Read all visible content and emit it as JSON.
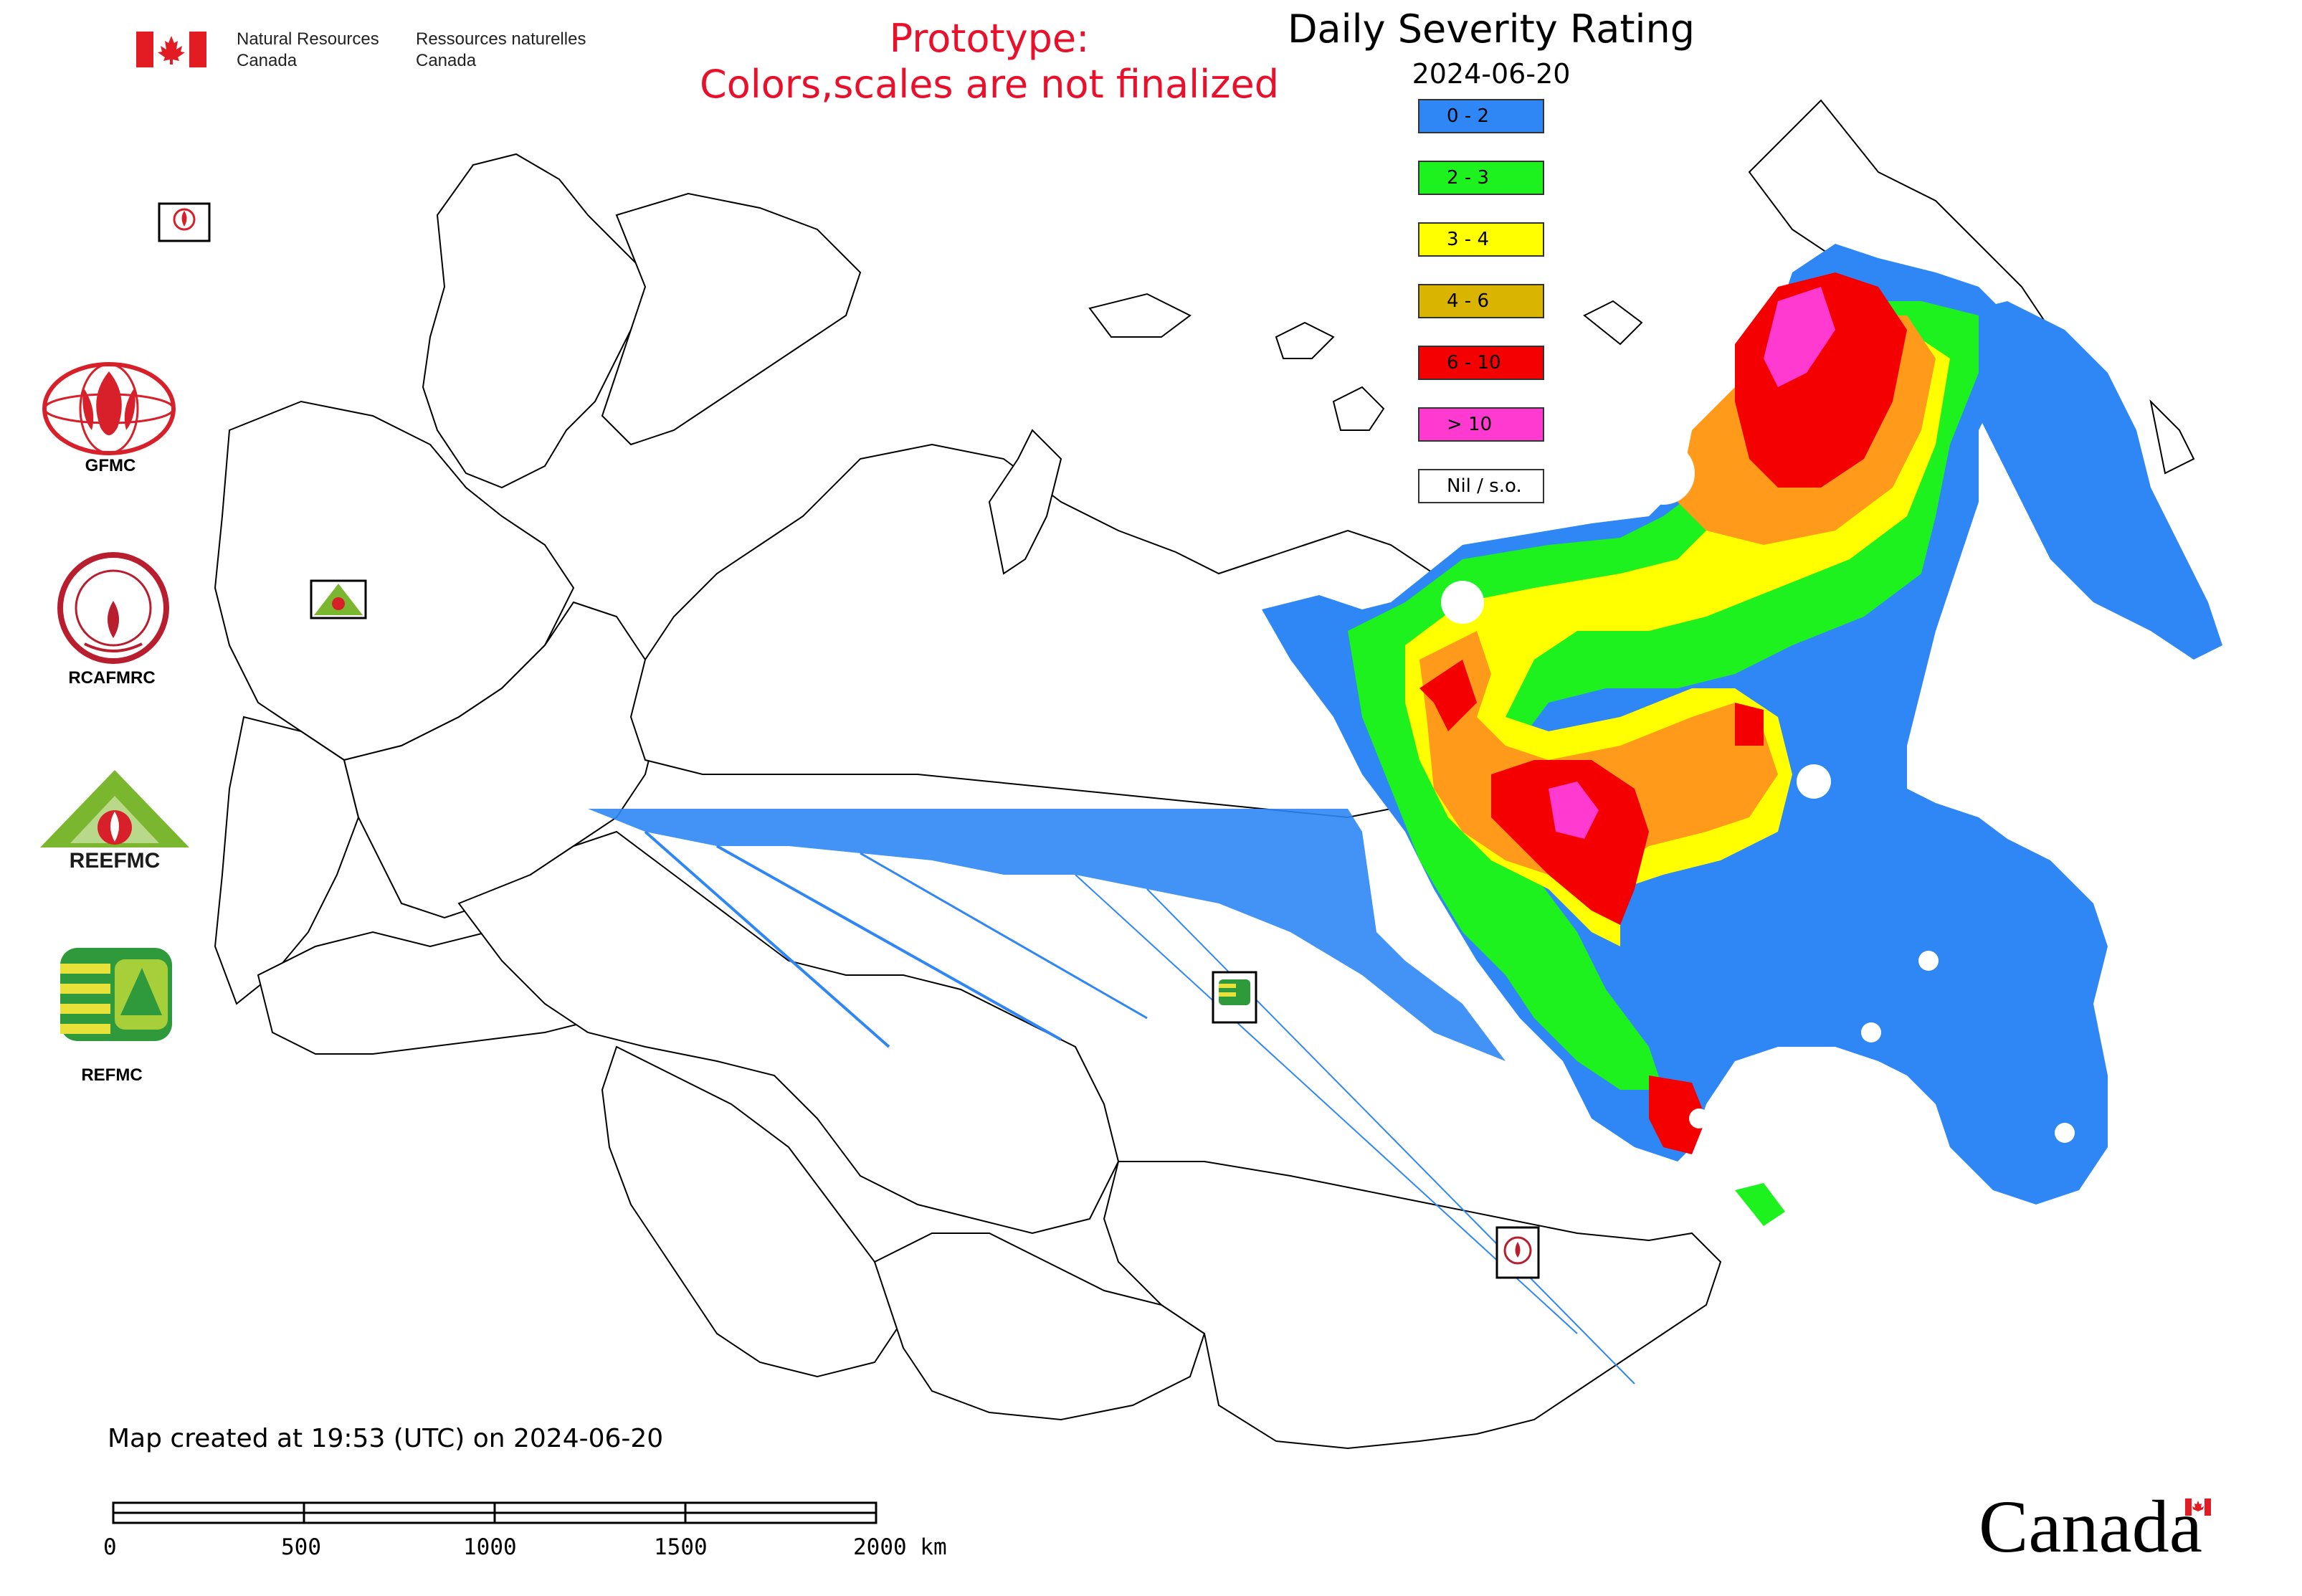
{
  "header": {
    "org_en": [
      "Natural Resources",
      "Canada"
    ],
    "org_fr": [
      "Ressources naturelles",
      "Canada"
    ],
    "prototype_notice": [
      "Prototype:",
      "Colors,scales are not finalized"
    ]
  },
  "legend": {
    "title": "Daily Severity Rating",
    "date": "2024-06-20",
    "items": [
      {
        "label": "0 - 2",
        "color": "#2f86f5"
      },
      {
        "label": "2 - 3",
        "color": "#1ef21e"
      },
      {
        "label": "3 - 4",
        "color": "#ffff00"
      },
      {
        "label": "4 - 6",
        "color": "#d9b400"
      },
      {
        "label": "6 - 10",
        "color": "#f50000"
      },
      {
        "label": "> 10",
        "color": "#ff3ad0"
      },
      {
        "label": "Nil / s.o.",
        "color": "#ffffff"
      }
    ]
  },
  "logos": [
    {
      "name": "gfmc-logo",
      "label": "GFMC",
      "color": "#d7202a"
    },
    {
      "name": "rcafmrc-logo",
      "label": "RCAFMRC",
      "color": "#b81e2e"
    },
    {
      "name": "reefmc-logo",
      "label": "REEFMC",
      "color": "#7ab62e"
    },
    {
      "name": "refmc-logo",
      "label": "REFMC",
      "color": "#2e9a3c"
    }
  ],
  "footer": {
    "created": "Map created at 19:53 (UTC) on 2024-06-20",
    "scale_ticks": [
      "0",
      "500",
      "1000",
      "1500",
      "2000 km"
    ],
    "wordmark": "Canada"
  },
  "colors": {
    "flag_red": "#e31c23",
    "prototype_red": "#e8102a"
  }
}
